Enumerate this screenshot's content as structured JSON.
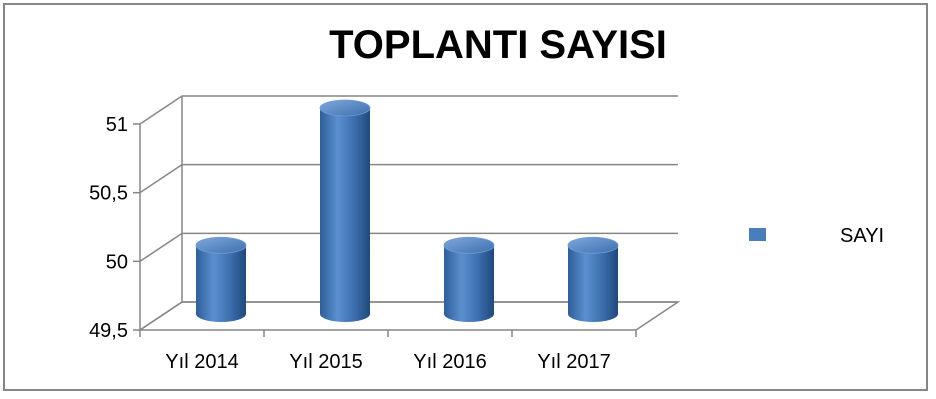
{
  "chart_data": {
    "type": "bar",
    "title": "TOPLANTI SAYISI",
    "categories": [
      "Yıl 2014",
      "Yıl 2015",
      "Yıl 2016",
      "Yıl 2017"
    ],
    "series": [
      {
        "name": "SAYI",
        "values": [
          50,
          51,
          50,
          50
        ],
        "color": "#4A7EBB"
      }
    ],
    "ylim": [
      49.5,
      51
    ],
    "y_ticks": [
      "49,5",
      "50",
      "50,5",
      "51"
    ],
    "grid": true,
    "legend": "right",
    "style": "3d-cylinder"
  }
}
